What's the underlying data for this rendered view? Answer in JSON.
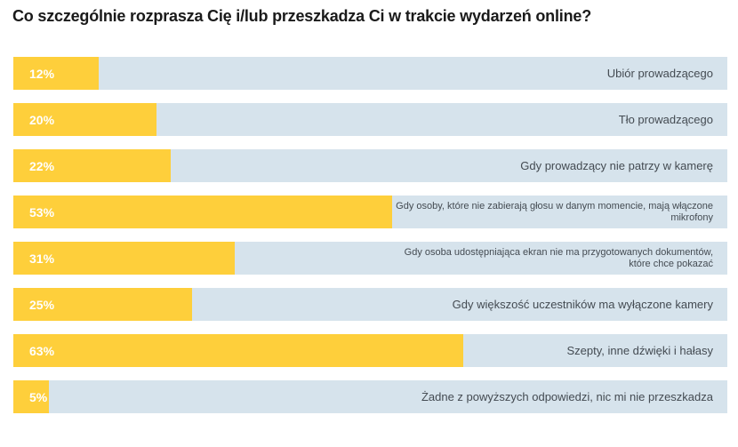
{
  "chart_data": {
    "type": "bar",
    "orientation": "horizontal",
    "title": "Co szczególnie rozprasza Cię i/lub przeszkadza Ci w trakcie wydarzeń online?",
    "categories": [
      "Ubiór prowadzącego",
      "Tło prowadzącego",
      "Gdy prowadzący nie patrzy w kamerę",
      "Gdy osoby, które nie zabierają głosu w danym momencie, mają włączone mikrofony",
      "Gdy osoba udostępniająca ekran nie ma przygotowanych dokumentów, które chce pokazać",
      "Gdy większość uczestników ma wyłączone kamery",
      "Szepty, inne dźwięki i hałasy",
      "Żadne z powyższych odpowiedzi, nic mi nie przeszkadza"
    ],
    "values": [
      12,
      20,
      22,
      53,
      31,
      25,
      63,
      5
    ],
    "value_labels": [
      "12%",
      "20%",
      "22%",
      "53%",
      "31%",
      "25%",
      "63%",
      "5%"
    ],
    "xlim": [
      0,
      100
    ],
    "colors": {
      "bar": "#fecf3b",
      "track": "#d6e3ec",
      "value_text": "#ffffff",
      "label_text": "#444b52"
    }
  }
}
